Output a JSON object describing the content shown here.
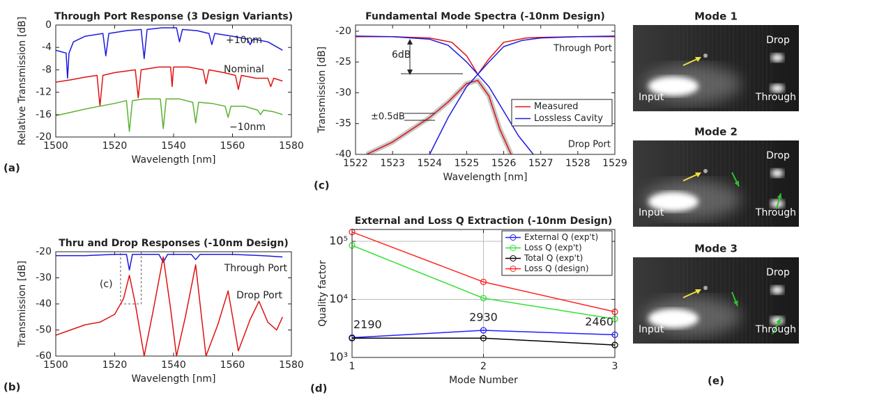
{
  "chart_data": [
    {
      "type": "line",
      "title": "Through Port Response (3 Design Variants)",
      "panel_label": "(a)",
      "xlabel": "Wavelength [nm]",
      "ylabel": "Relative Transmission [dB]",
      "xlim": [
        1500,
        1580
      ],
      "xticks": [
        1500,
        1520,
        1540,
        1560,
        1580
      ],
      "ylim": [
        -20,
        0
      ],
      "yticks": [
        0,
        -4,
        -8,
        -12,
        -16,
        -20
      ],
      "grid": false,
      "series": [
        {
          "name": "+10nm",
          "color": "#1a1ae0",
          "x": [
            1500,
            1502,
            1503.5,
            1504,
            1504.5,
            1506,
            1510,
            1516,
            1517,
            1518,
            1524,
            1529,
            1530,
            1531,
            1536,
            1541,
            1542,
            1543,
            1548,
            1552,
            1553,
            1554,
            1560,
            1565,
            1566,
            1567,
            1572,
            1577
          ],
          "values": [
            -4.5,
            -4.8,
            -5,
            -9.5,
            -5,
            -3,
            -2,
            -1.5,
            -5.5,
            -1.5,
            -1,
            -0.8,
            -6,
            -0.8,
            -0.5,
            -0.5,
            -3,
            -0.8,
            -1,
            -1.5,
            -3.5,
            -1.5,
            -2,
            -2.5,
            -3.5,
            -2.5,
            -3,
            -4.5
          ]
        },
        {
          "name": "Nominal",
          "color": "#e01010",
          "x": [
            1500,
            1505,
            1510,
            1514,
            1515,
            1516,
            1520,
            1527,
            1528,
            1529,
            1535,
            1539,
            1539.5,
            1540,
            1545,
            1550,
            1551,
            1552,
            1557,
            1561,
            1562,
            1563,
            1568,
            1572,
            1573,
            1574,
            1577
          ],
          "values": [
            -10.2,
            -9.8,
            -9.3,
            -9,
            -14.5,
            -9,
            -8.5,
            -8,
            -13,
            -8,
            -7.5,
            -7.5,
            -11,
            -7.5,
            -7.5,
            -8,
            -10.5,
            -8,
            -8.5,
            -9,
            -11.5,
            -9,
            -9.5,
            -9.5,
            -11,
            -9.5,
            -10
          ]
        },
        {
          "name": "−10nm",
          "color": "#5cb030",
          "x": [
            1500,
            1505,
            1510,
            1515,
            1520,
            1524,
            1525,
            1526,
            1530,
            1535.5,
            1536.5,
            1537.5,
            1542,
            1546.5,
            1547.5,
            1548.5,
            1553,
            1557.5,
            1558.5,
            1559.5,
            1564,
            1568.5,
            1569.5,
            1570.5,
            1574,
            1577
          ],
          "values": [
            -16.2,
            -15.6,
            -15,
            -14.5,
            -14,
            -13.5,
            -19,
            -13.5,
            -13.2,
            -13.2,
            -18.5,
            -13.2,
            -13.2,
            -13.8,
            -17.5,
            -13.8,
            -14,
            -14.5,
            -16.5,
            -14.5,
            -14.5,
            -15.2,
            -16,
            -15.2,
            -15.5,
            -16
          ]
        }
      ]
    },
    {
      "type": "line",
      "title": "Thru and Drop Responses (-10nm Design)",
      "panel_label": "(b)",
      "xlabel": "Wavelength [nm]",
      "ylabel": "Transmission [dB]",
      "xlim": [
        1500,
        1580
      ],
      "xticks": [
        1500,
        1520,
        1540,
        1560,
        1580
      ],
      "ylim": [
        -60,
        -20
      ],
      "yticks": [
        -20,
        -30,
        -40,
        -50,
        -60
      ],
      "grid": false,
      "inset_box": {
        "label": "(c)",
        "xlim": [
          1522,
          1529
        ],
        "ylim": [
          -40,
          -20
        ]
      },
      "series": [
        {
          "name": "Through Port",
          "color": "#1a1ae0",
          "x": [
            1500,
            1510,
            1520,
            1524,
            1525,
            1526,
            1530,
            1535,
            1536.5,
            1538,
            1546,
            1547.5,
            1549,
            1560,
            1570,
            1577
          ],
          "values": [
            -21.5,
            -21.5,
            -21,
            -21,
            -27,
            -21,
            -21,
            -21,
            -24,
            -21,
            -21,
            -23,
            -21,
            -21,
            -21.5,
            -22
          ]
        },
        {
          "name": "Drop Port",
          "color": "#e01010",
          "x": [
            1500,
            1505,
            1510,
            1515,
            1520,
            1523,
            1525,
            1527,
            1530,
            1533,
            1536.5,
            1539,
            1541,
            1544,
            1547.5,
            1549.5,
            1551,
            1555,
            1558.5,
            1560.5,
            1562,
            1566,
            1569,
            1572,
            1575,
            1577
          ],
          "values": [
            -52,
            -50,
            -48,
            -47,
            -44,
            -38,
            -29,
            -40,
            -60,
            -43,
            -22,
            -42,
            -60,
            -45,
            -25,
            -45,
            -60,
            -48,
            -35,
            -48,
            -58,
            -46,
            -39,
            -47,
            -50,
            -45
          ]
        }
      ]
    },
    {
      "type": "line",
      "title": "Fundamental Mode Spectra (-10nm Design)",
      "panel_label": "(c)",
      "xlabel": "Wavelength [nm]",
      "ylabel": "Transmission [dB]",
      "xlim": [
        1522,
        1529
      ],
      "xticks": [
        1522,
        1523,
        1524,
        1525,
        1526,
        1527,
        1528,
        1529
      ],
      "ylim": [
        -40,
        -19
      ],
      "yticks": [
        -20,
        -25,
        -30,
        -35,
        -40
      ],
      "grid": false,
      "legend": "right",
      "annotations": [
        "6dB",
        "±0.5dB",
        "Through Port",
        "Drop Port"
      ],
      "series": [
        {
          "name": "Measured",
          "color": "#e01010",
          "x": [
            1522,
            1523,
            1524,
            1524.6,
            1525,
            1525.3,
            1525.6,
            1526,
            1526.6,
            1527,
            1528,
            1529
          ],
          "values": [
            -20.9,
            -20.9,
            -21.1,
            -21.8,
            -24,
            -27,
            -24.5,
            -21.8,
            -21.1,
            -21,
            -20.9,
            -20.9
          ]
        },
        {
          "name": "Lossless Cavity",
          "color": "#1a1ae0",
          "x": [
            1522,
            1523,
            1524,
            1524.5,
            1525,
            1525.3,
            1525.6,
            1526,
            1526.5,
            1527,
            1528,
            1529
          ],
          "values": [
            -20.8,
            -20.9,
            -21.3,
            -22.3,
            -25,
            -27,
            -25,
            -22.5,
            -21.5,
            -21.1,
            -20.9,
            -20.8
          ]
        },
        {
          "color": "#e01010",
          "x": [
            1522.3,
            1523,
            1523.5,
            1524,
            1524.5,
            1525,
            1525.3,
            1525.6,
            1525.9,
            1526.2
          ],
          "values": [
            -40,
            -38,
            -36,
            -34,
            -31.5,
            -28.5,
            -28,
            -30.5,
            -36,
            -40
          ]
        },
        {
          "color": "#1a1ae0",
          "x": [
            1524,
            1524.5,
            1525,
            1525.3,
            1525.6,
            1526,
            1526.4,
            1526.8
          ],
          "values": [
            -40,
            -34,
            -29,
            -27,
            -29,
            -33,
            -37,
            -40
          ]
        }
      ]
    },
    {
      "type": "line",
      "title": "External and Loss Q Extraction (-10nm Design)",
      "panel_label": "(d)",
      "xlabel": "Mode Number",
      "ylabel": "Quality factor",
      "log_y": true,
      "markers": true,
      "xlim": [
        1,
        3
      ],
      "xticks": [
        1,
        2,
        3
      ],
      "ylim": [
        1000,
        160000
      ],
      "yticks": [
        {
          "value": 1000,
          "label": "10³"
        },
        {
          "value": 10000,
          "label": "10⁴"
        },
        {
          "value": 100000,
          "label": "10⁵"
        }
      ],
      "grid": true,
      "legend": "upper right",
      "x": [
        1,
        2,
        3
      ],
      "series": [
        {
          "name": "External Q (exp't)",
          "color": "#2020ff",
          "values": [
            2190,
            2930,
            2460
          ],
          "value_labels": [
            "2190",
            "2930",
            "2460"
          ]
        },
        {
          "name": "Loss Q (exp't)",
          "color": "#33e033",
          "values": [
            85000,
            10500,
            4600
          ]
        },
        {
          "name": "Total Q (exp't)",
          "color": "#000000",
          "values": [
            2150,
            2150,
            1640
          ]
        },
        {
          "name": "Loss Q (design)",
          "color": "#ff2020",
          "values": [
            145000,
            20000,
            6100
          ]
        }
      ]
    }
  ],
  "images": {
    "panel_label": "(e)",
    "items": [
      {
        "title": "Mode 1",
        "labels": [
          "Drop",
          "Input",
          "Through"
        ]
      },
      {
        "title": "Mode 2",
        "labels": [
          "Drop",
          "Input",
          "Through"
        ]
      },
      {
        "title": "Mode 3",
        "labels": [
          "Drop",
          "Input",
          "Through"
        ]
      }
    ]
  }
}
